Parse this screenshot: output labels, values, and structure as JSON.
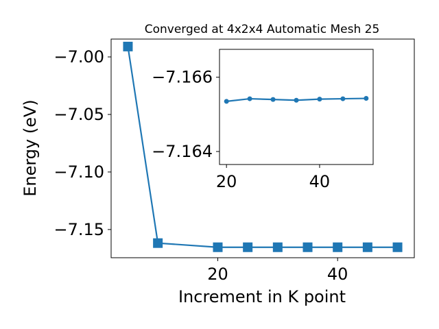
{
  "chart_data": [
    {
      "type": "line",
      "title": "Converged at 4x2x4 Automatic Mesh 25",
      "xlabel": "Increment in K point",
      "ylabel": "Energy (eV)",
      "xlim": [
        2.2,
        52.8
      ],
      "ylim": [
        -7.1745,
        -6.9845
      ],
      "xticks": [
        20,
        40
      ],
      "xtick_labels": [
        "20",
        "40"
      ],
      "yticks": [
        -7.0,
        -7.05,
        -7.1,
        -7.15
      ],
      "ytick_labels": [
        "−7.00",
        "−7.05",
        "−7.10",
        "−7.15"
      ],
      "marker": "square",
      "color": "#1f77b4",
      "series": [
        {
          "x": [
            5,
            10,
            20,
            25,
            30,
            35,
            40,
            45,
            50
          ],
          "y": [
            -6.991,
            -7.1618,
            -7.1654,
            -7.1654,
            -7.1654,
            -7.1654,
            -7.1654,
            -7.1654,
            -7.1654
          ]
        }
      ]
    },
    {
      "type": "line",
      "title": "",
      "xlabel": "",
      "ylabel": "",
      "xlim": [
        18.5,
        51.5
      ],
      "ylim": [
        -7.16365,
        -7.16675
      ],
      "xticks": [
        20,
        40
      ],
      "xtick_labels": [
        "20",
        "40"
      ],
      "yticks": [
        -7.166,
        -7.164
      ],
      "ytick_labels": [
        "−7.166",
        "−7.164"
      ],
      "marker": "circle",
      "color": "#1f77b4",
      "series": [
        {
          "x": [
            20,
            25,
            30,
            35,
            40,
            45,
            50
          ],
          "y": [
            -7.16535,
            -7.16542,
            -7.1654,
            -7.16538,
            -7.16541,
            -7.16542,
            -7.16543
          ]
        }
      ]
    }
  ]
}
